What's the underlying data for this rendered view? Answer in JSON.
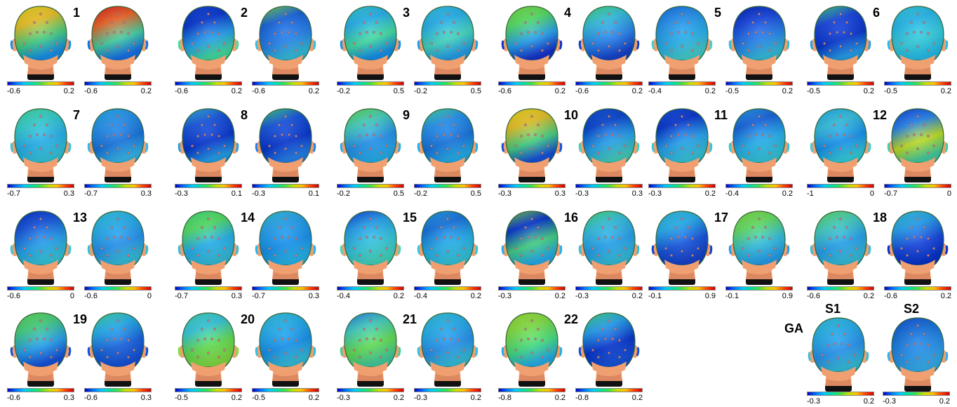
{
  "panels": [
    {
      "n": "1",
      "ranges": [
        [
          "-0.6",
          "0.2"
        ],
        [
          "-0.6",
          "0.2"
        ]
      ],
      "maps": [
        [
          "#e8e020",
          "#f0c020",
          "#40d080",
          "#1090f0"
        ],
        [
          "#e02020",
          "#f06020",
          "#40d0a0",
          "#1070f0"
        ]
      ]
    },
    {
      "n": "2",
      "ranges": [
        [
          "-0.6",
          "0.2"
        ],
        [
          "-0.6",
          "0.2"
        ]
      ],
      "maps": [
        [
          "#1040e0",
          "#0030d0",
          "#20a0f0",
          "#40e0a0"
        ],
        [
          "#80e040",
          "#1060e0",
          "#2080f0",
          "#30c0e0"
        ]
      ]
    },
    {
      "n": "3",
      "ranges": [
        [
          "-0.2",
          "0.5"
        ],
        [
          "-0.2",
          "0.5"
        ]
      ],
      "maps": [
        [
          "#30d0d0",
          "#20b0f0",
          "#40e0a0",
          "#1090f0"
        ],
        [
          "#30c8e8",
          "#20b0f0",
          "#40d8c0",
          "#20a0f0"
        ]
      ]
    },
    {
      "n": "4",
      "ranges": [
        [
          "-0.6",
          "0.2"
        ],
        [
          "-0.6",
          "0.2"
        ]
      ],
      "maps": [
        [
          "#80e040",
          "#50e060",
          "#20a0f0",
          "#1030d0"
        ],
        [
          "#40e080",
          "#30c0e0",
          "#2080f0",
          "#1040d0"
        ]
      ]
    },
    {
      "n": "5",
      "ranges": [
        [
          "-0.4",
          "0.2"
        ],
        [
          "-0.5",
          "0.2"
        ]
      ],
      "maps": [
        [
          "#1070f0",
          "#2090f0",
          "#20b0f0",
          "#40d0d0"
        ],
        [
          "#0020c0",
          "#1040e0",
          "#2080f0",
          "#30c0e0"
        ]
      ]
    },
    {
      "n": "6",
      "ranges": [
        [
          "-0.5",
          "0.2"
        ],
        [
          "-0.5",
          "0.2"
        ]
      ],
      "maps": [
        [
          "#40e080",
          "#1040e0",
          "#0030d0",
          "#20a0f0"
        ],
        [
          "#30d0e0",
          "#20b8f0",
          "#30d0e0",
          "#20c0f0"
        ]
      ]
    },
    {
      "n": "7",
      "ranges": [
        [
          "-0.7",
          "0.3"
        ],
        [
          "-0.7",
          "0.3"
        ]
      ],
      "maps": [
        [
          "#40e0a0",
          "#30d0d0",
          "#20b0f0",
          "#30c8e0"
        ],
        [
          "#20b0f0",
          "#2090f0",
          "#1070e0",
          "#30b8f0"
        ]
      ]
    },
    {
      "n": "8",
      "ranges": [
        [
          "-0.3",
          "0.1"
        ],
        [
          "-0.3",
          "0.1"
        ]
      ],
      "maps": [
        [
          "#30c0e0",
          "#1050e0",
          "#0030d0",
          "#20a0f0"
        ],
        [
          "#40e080",
          "#1050e0",
          "#0030d0",
          "#2080f0"
        ]
      ]
    },
    {
      "n": "9",
      "ranges": [
        [
          "-0.2",
          "0.5"
        ],
        [
          "-0.2",
          "0.5"
        ]
      ],
      "maps": [
        [
          "#60e050",
          "#40d0c0",
          "#2090f0",
          "#20b0f0"
        ],
        [
          "#40e0a0",
          "#2090f0",
          "#1070e0",
          "#20b0f0"
        ]
      ]
    },
    {
      "n": "10",
      "ranges": [
        [
          "-0.3",
          "0.3"
        ],
        [
          "-0.3",
          "0.3"
        ]
      ],
      "maps": [
        [
          "#f0e020",
          "#e8c020",
          "#40d080",
          "#1050e0"
        ],
        [
          "#1050e0",
          "#0040d0",
          "#20a0f0",
          "#40d0c0"
        ]
      ]
    },
    {
      "n": "11",
      "ranges": [
        [
          "-0.3",
          "0.2"
        ],
        [
          "-0.4",
          "0.2"
        ]
      ],
      "maps": [
        [
          "#1050e0",
          "#0030d0",
          "#20a0f0",
          "#30c8e0"
        ],
        [
          "#20a0f0",
          "#1060e0",
          "#20b0f0",
          "#30c8e0"
        ]
      ]
    },
    {
      "n": "12",
      "ranges": [
        [
          "-1",
          "0"
        ],
        [
          "-0.7",
          "0"
        ]
      ],
      "maps": [
        [
          "#20b0f0",
          "#30c0e0",
          "#1090f0",
          "#30d0e0"
        ],
        [
          "#1040e0",
          "#2080f0",
          "#c0e020",
          "#40d0a0"
        ]
      ]
    },
    {
      "n": "13",
      "ranges": [
        [
          "-0.6",
          "0"
        ],
        [
          "-0.6",
          "0"
        ]
      ],
      "maps": [
        [
          "#0030d0",
          "#1050e0",
          "#20a0f0",
          "#30c8e0"
        ],
        [
          "#30c8e0",
          "#20b0f0",
          "#2090f0",
          "#30c0e0"
        ]
      ]
    },
    {
      "n": "14",
      "ranges": [
        [
          "-0.7",
          "0.3"
        ],
        [
          "-0.7",
          "0.3"
        ]
      ],
      "maps": [
        [
          "#40e080",
          "#50e060",
          "#20b0f0",
          "#30c0e0"
        ],
        [
          "#30c8e0",
          "#20a0f0",
          "#1090f0",
          "#20b8f0"
        ]
      ]
    },
    {
      "n": "15",
      "ranges": [
        [
          "-0.4",
          "0.2"
        ],
        [
          "-0.4",
          "0.2"
        ]
      ],
      "maps": [
        [
          "#1040e0",
          "#20a0f0",
          "#30c8e0",
          "#40d8c0"
        ],
        [
          "#20a0f0",
          "#1070e0",
          "#20b0f0",
          "#30c8e0"
        ]
      ]
    },
    {
      "n": "16",
      "ranges": [
        [
          "-0.3",
          "0.2"
        ],
        [
          "-0.3",
          "0.2"
        ]
      ],
      "maps": [
        [
          "#80e040",
          "#0030d0",
          "#40d080",
          "#20b0f0"
        ],
        [
          "#40e080",
          "#30c0e0",
          "#20a0f0",
          "#30c0e0"
        ]
      ]
    },
    {
      "n": "17",
      "ranges": [
        [
          "-0.1",
          "0.9"
        ],
        [
          "-0.1",
          "0.9"
        ]
      ],
      "maps": [
        [
          "#30c0e0",
          "#20b0f0",
          "#1050e0",
          "#1040d0"
        ],
        [
          "#80e040",
          "#60e060",
          "#30c0e0",
          "#20a0f0"
        ]
      ]
    },
    {
      "n": "18",
      "ranges": [
        [
          "-0.6",
          "0.2"
        ],
        [
          "-0.6",
          "0.2"
        ]
      ],
      "maps": [
        [
          "#60e060",
          "#40d0c0",
          "#20a0f0",
          "#30c0e0"
        ],
        [
          "#30c8e0",
          "#20a0f0",
          "#1040e0",
          "#0030d0"
        ]
      ]
    },
    {
      "n": "19",
      "ranges": [
        [
          "-0.6",
          "0.3"
        ],
        [
          "-0.6",
          "0.3"
        ]
      ],
      "maps": [
        [
          "#60e050",
          "#40d080",
          "#20a0f0",
          "#1050e0"
        ],
        [
          "#40e0a0",
          "#20b0f0",
          "#1060e0",
          "#1050e0"
        ]
      ]
    },
    {
      "n": "20",
      "ranges": [
        [
          "-0.5",
          "0.2"
        ],
        [
          "-0.5",
          "0.2"
        ]
      ],
      "maps": [
        [
          "#40d8c0",
          "#30c8e0",
          "#60e050",
          "#80e040"
        ],
        [
          "#30c8e0",
          "#20b0f0",
          "#1090f0",
          "#30c0e0"
        ]
      ]
    },
    {
      "n": "21",
      "ranges": [
        [
          "-0.3",
          "0.2"
        ],
        [
          "-0.3",
          "0.2"
        ]
      ],
      "maps": [
        [
          "#2080f0",
          "#40d0c0",
          "#60e050",
          "#40d0a0"
        ],
        [
          "#30c8e0",
          "#20b0f0",
          "#2090f0",
          "#30c0e0"
        ]
      ]
    },
    {
      "n": "22",
      "ranges": [
        [
          "-0.8",
          "0.2"
        ],
        [
          "-0.8",
          "0.2"
        ]
      ],
      "maps": [
        [
          "#a0e030",
          "#80e040",
          "#40e080",
          "#20b0f0"
        ],
        [
          "#40e080",
          "#20a0f0",
          "#0030d0",
          "#1050e0"
        ]
      ]
    }
  ],
  "ga": {
    "label": "GA",
    "s1": {
      "label": "S1",
      "range": [
        "-0.3",
        "0.2"
      ],
      "map": [
        "#30c8e0",
        "#20b0f0",
        "#2090f0",
        "#30c0e0"
      ]
    },
    "s2": {
      "label": "S2",
      "range": [
        "-0.3",
        "0.2"
      ],
      "map": [
        "#1050e0",
        "#1070e0",
        "#2090f0",
        "#30b0f0"
      ]
    }
  },
  "colors": {
    "skin": "#f0a070",
    "skin_dark": "#c87050",
    "neck_base": "#111111",
    "electrode": "#d08080"
  }
}
